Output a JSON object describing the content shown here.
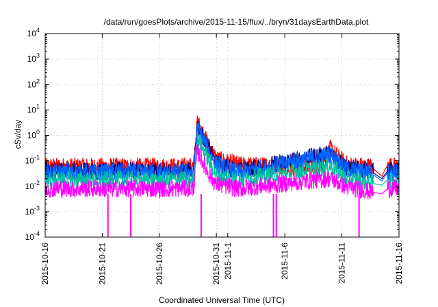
{
  "chart_data": {
    "type": "line",
    "title": "/data/run/goesPlots/archive/2015-11-15/flux/../bryn/31daysEarthData.plot",
    "xlabel": "Coordinated Universal Time (UTC)",
    "ylabel": "cSv/day",
    "yscale": "log",
    "ylim": [
      0.0001,
      10000
    ],
    "y_ticks": [
      {
        "exp": -4,
        "base": "10",
        "sup": "-4"
      },
      {
        "exp": -3,
        "base": "10",
        "sup": "-3"
      },
      {
        "exp": -2,
        "base": "10",
        "sup": "-2"
      },
      {
        "exp": -1,
        "base": "10",
        "sup": "-1"
      },
      {
        "exp": 0,
        "base": "10",
        "sup": "0"
      },
      {
        "exp": 1,
        "base": "10",
        "sup": "1"
      },
      {
        "exp": 2,
        "base": "10",
        "sup": "2"
      },
      {
        "exp": 3,
        "base": "10",
        "sup": "3"
      },
      {
        "exp": 4,
        "base": "10",
        "sup": "4"
      }
    ],
    "xlim": [
      "2015-10-16",
      "2015-11-16"
    ],
    "x_ticks": [
      {
        "date": "2015-10-16",
        "label": "2015-10-16"
      },
      {
        "date": "2015-10-21",
        "label": "2015-10-21"
      },
      {
        "date": "2015-10-26",
        "label": "2015-10-26"
      },
      {
        "date": "2015-10-31",
        "label": "2015-10-31"
      },
      {
        "date": "2015-11-01",
        "label": "2015-11-1"
      },
      {
        "date": "2015-11-06",
        "label": "2015-11-6"
      },
      {
        "date": "2015-11-11",
        "label": "2015-11-11"
      },
      {
        "date": "2015-11-16",
        "label": "2015-11-16"
      }
    ],
    "grid": true,
    "series": [
      {
        "color": "#ff0000",
        "values": [
          [
            "2015-10-16",
            0.06
          ],
          [
            "2015-10-21",
            0.06
          ],
          [
            "2015-10-26",
            0.06
          ],
          [
            "2015-10-29T00:00",
            0.06
          ],
          [
            "2015-10-29T08:00",
            3.5
          ],
          [
            "2015-10-29T20:00",
            1.2
          ],
          [
            "2015-10-30T08:00",
            0.4
          ],
          [
            "2015-10-31",
            0.12
          ],
          [
            "2015-11-02",
            0.07
          ],
          [
            "2015-11-06",
            0.06
          ],
          [
            "2015-11-09",
            0.06
          ],
          [
            "2015-11-10",
            0.3
          ],
          [
            "2015-11-10T20:00",
            0.12
          ],
          [
            "2015-11-11T12:00",
            0.07
          ],
          [
            "2015-11-13T12:00",
            0.06
          ],
          [
            "2015-11-14T12:00",
            0.025
          ],
          [
            "2015-11-15",
            0.07
          ],
          [
            "2015-11-16",
            0.06
          ]
        ]
      },
      {
        "color": "#000080",
        "values": [
          [
            "2015-10-16",
            0.04
          ],
          [
            "2015-10-29T00:00",
            0.04
          ],
          [
            "2015-10-29T08:00",
            2.5
          ],
          [
            "2015-10-30T08:00",
            0.3
          ],
          [
            "2015-10-31",
            0.08
          ],
          [
            "2015-11-02",
            0.04
          ],
          [
            "2015-11-10",
            0.2
          ],
          [
            "2015-11-11T12:00",
            0.05
          ],
          [
            "2015-11-13T12:00",
            0.04
          ],
          [
            "2015-11-14T12:00",
            0.02
          ],
          [
            "2015-11-15",
            0.04
          ],
          [
            "2015-11-16",
            0.04
          ]
        ]
      },
      {
        "color": "#0066ff",
        "values": [
          [
            "2015-10-16",
            0.035
          ],
          [
            "2015-10-29T00:00",
            0.035
          ],
          [
            "2015-10-29T08:00",
            2.0
          ],
          [
            "2015-10-30T08:00",
            0.25
          ],
          [
            "2015-10-31",
            0.07
          ],
          [
            "2015-11-02",
            0.035
          ],
          [
            "2015-11-10",
            0.18
          ],
          [
            "2015-11-11T12:00",
            0.045
          ],
          [
            "2015-11-13T12:00",
            0.035
          ],
          [
            "2015-11-14T12:00",
            0.016
          ],
          [
            "2015-11-15",
            0.035
          ],
          [
            "2015-11-16",
            0.035
          ]
        ]
      },
      {
        "color": "#00c0a0",
        "values": [
          [
            "2015-10-16",
            0.018
          ],
          [
            "2015-10-29T00:00",
            0.018
          ],
          [
            "2015-10-29T08:00",
            0.8
          ],
          [
            "2015-10-30T08:00",
            0.1
          ],
          [
            "2015-10-31",
            0.03
          ],
          [
            "2015-11-02",
            0.018
          ],
          [
            "2015-11-10",
            0.06
          ],
          [
            "2015-11-11T12:00",
            0.02
          ],
          [
            "2015-11-14T12:00",
            0.011
          ],
          [
            "2015-11-15",
            0.018
          ],
          [
            "2015-11-16",
            0.018
          ]
        ]
      },
      {
        "color": "#ff00ff",
        "values": [
          [
            "2015-10-16",
            0.008
          ],
          [
            "2015-10-29T00:00",
            0.008
          ],
          [
            "2015-10-29T08:00",
            0.25
          ],
          [
            "2015-10-30T08:00",
            0.03
          ],
          [
            "2015-10-31",
            0.012
          ],
          [
            "2015-11-02",
            0.008
          ],
          [
            "2015-11-10",
            0.02
          ],
          [
            "2015-11-11T12:00",
            0.009
          ],
          [
            "2015-11-14T12:00",
            0.005
          ],
          [
            "2015-11-15",
            0.008
          ],
          [
            "2015-11-16",
            0.008
          ]
        ]
      }
    ],
    "dropouts": [
      "2015-10-21T12:00",
      "2015-10-23T12:00",
      "2015-10-29T16:00",
      "2015-11-05T00:00",
      "2015-11-05T06:00",
      "2015-11-12T12:00"
    ]
  }
}
